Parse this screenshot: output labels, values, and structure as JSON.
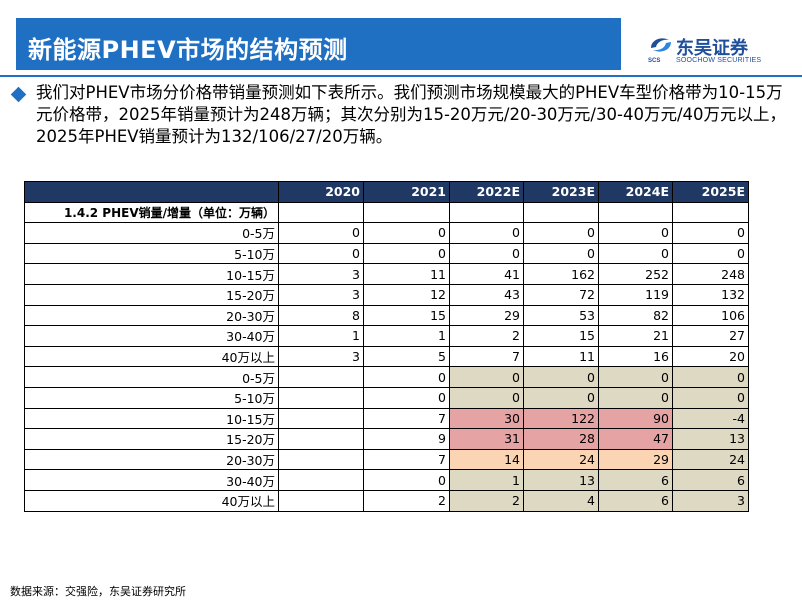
{
  "title": "新能源PHEV市场的结构预测",
  "logo": {
    "name_cn": "东吴证券",
    "name_en": "SOOCHOW SECURITIES",
    "abbr": "SCS"
  },
  "paragraph": "我们对PHEV市场分价格带销量预测如下表所示。我们预测市场规模最大的PHEV车型价格带为10-15万元价格带，2025年销量预计为248万辆；其次分别为15-20万元/20-30万元/30-40万元/40万元以上，2025年PHEV销量预计为132/106/27/20万辆。",
  "table": {
    "years": [
      "2020",
      "2021",
      "2022E",
      "2023E",
      "2024E",
      "2025E"
    ],
    "section_title": "1.4.2 PHEV销量/增量（单位：万辆）",
    "sales_rows": [
      {
        "label": "0-5万",
        "values": [
          "0",
          "0",
          "0",
          "0",
          "0",
          "0"
        ]
      },
      {
        "label": "5-10万",
        "values": [
          "0",
          "0",
          "0",
          "0",
          "0",
          "0"
        ]
      },
      {
        "label": "10-15万",
        "values": [
          "3",
          "11",
          "41",
          "162",
          "252",
          "248"
        ]
      },
      {
        "label": "15-20万",
        "values": [
          "3",
          "12",
          "43",
          "72",
          "119",
          "132"
        ]
      },
      {
        "label": "20-30万",
        "values": [
          "8",
          "15",
          "29",
          "53",
          "82",
          "106"
        ]
      },
      {
        "label": "30-40万",
        "values": [
          "1",
          "1",
          "2",
          "15",
          "21",
          "27"
        ]
      },
      {
        "label": "40万以上",
        "values": [
          "3",
          "5",
          "7",
          "11",
          "16",
          "20"
        ]
      }
    ],
    "increment_rows": [
      {
        "label": "0-5万",
        "values": [
          "",
          "0",
          "0",
          "0",
          "0",
          "0"
        ]
      },
      {
        "label": "5-10万",
        "values": [
          "",
          "0",
          "0",
          "0",
          "0",
          "0"
        ]
      },
      {
        "label": "10-15万",
        "values": [
          "",
          "7",
          "30",
          "122",
          "90",
          "-4"
        ]
      },
      {
        "label": "15-20万",
        "values": [
          "",
          "9",
          "31",
          "28",
          "47",
          "13"
        ]
      },
      {
        "label": "20-30万",
        "values": [
          "",
          "7",
          "14",
          "24",
          "29",
          "24"
        ]
      },
      {
        "label": "30-40万",
        "values": [
          "",
          "0",
          "1",
          "13",
          "6",
          "6"
        ]
      },
      {
        "label": "40万以上",
        "values": [
          "",
          "2",
          "2",
          "4",
          "6",
          "3"
        ]
      }
    ]
  },
  "source": "数据来源：交强险，东吴证券研究所",
  "colors": {
    "title_bar": "#1f6fc2",
    "header_row": "#1f3864",
    "highlight_tan": "#ddd9c3",
    "highlight_red": "#e6a3a3",
    "highlight_peach": "#fbd4b4"
  }
}
